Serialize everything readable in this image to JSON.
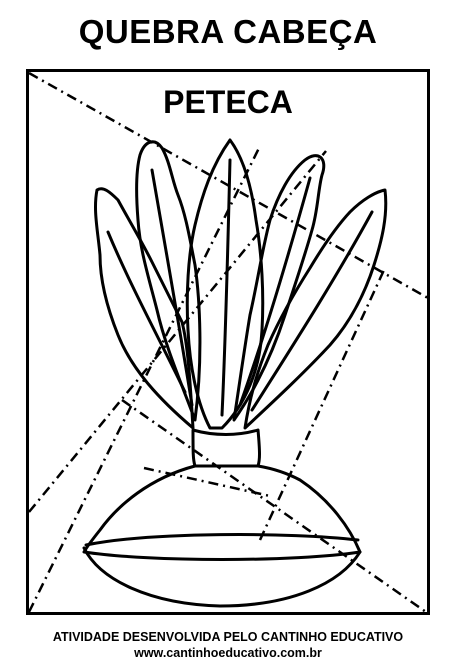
{
  "header": {
    "title": "QUEBRA CABEÇA"
  },
  "puzzle": {
    "word": "PETECA",
    "image": "peteca-shuttlecock-drawing"
  },
  "footer": {
    "credit": "ATIVIDADE DESENVOLVIDA PELO CANTINHO EDUCATIVO",
    "website": "www.cantinhoeducativo.com.br"
  }
}
